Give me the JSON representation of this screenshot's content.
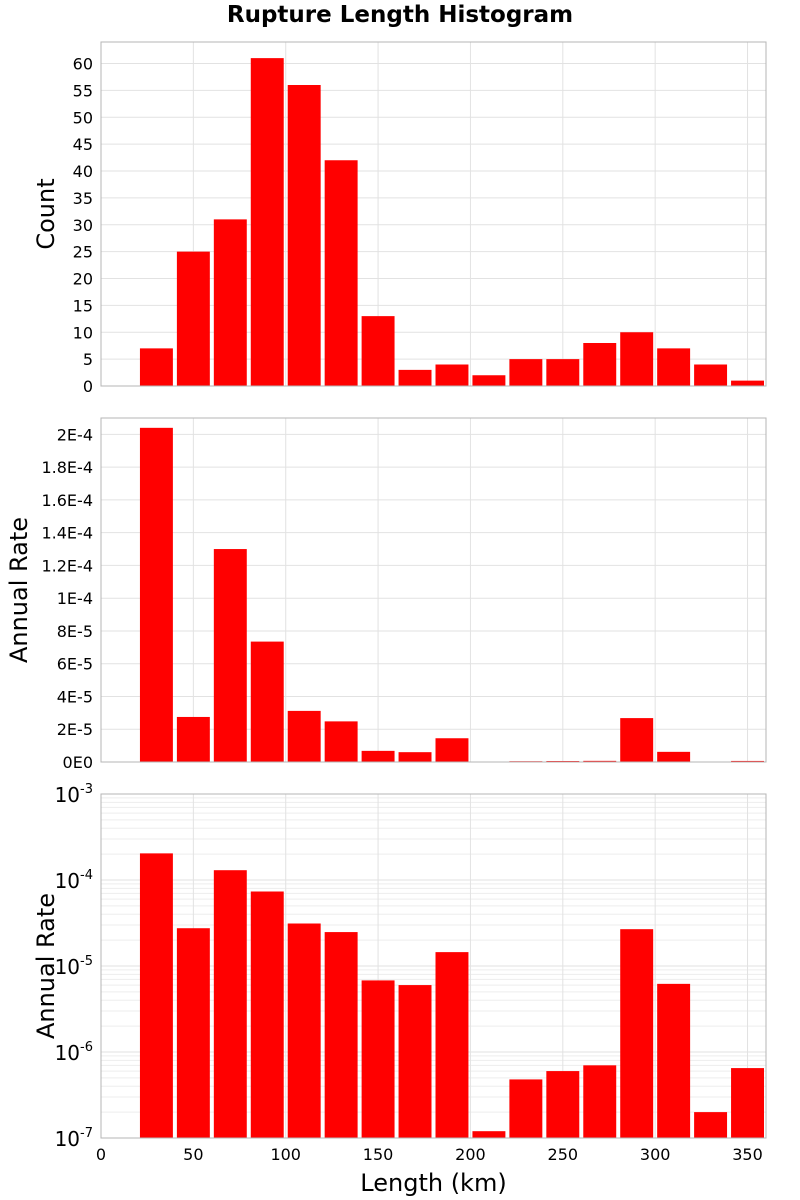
{
  "title": "Rupture Length Histogram",
  "chart_data": [
    {
      "type": "bar",
      "title": "Rupture Length Histogram",
      "xlabel": "",
      "ylabel": "Count",
      "xlim": [
        0,
        360
      ],
      "ylim": [
        0,
        64
      ],
      "yticks": [
        0,
        5,
        10,
        15,
        20,
        25,
        30,
        35,
        40,
        45,
        50,
        55,
        60
      ],
      "ytick_labels": [
        "0",
        "5",
        "10",
        "15",
        "20",
        "25",
        "30",
        "35",
        "40",
        "45",
        "50",
        "55",
        "60"
      ],
      "grid": true,
      "bar_color": "#ff0000",
      "bins": [
        {
          "x": 30,
          "value": 7
        },
        {
          "x": 50,
          "value": 25
        },
        {
          "x": 70,
          "value": 31
        },
        {
          "x": 90,
          "value": 61
        },
        {
          "x": 110,
          "value": 56
        },
        {
          "x": 130,
          "value": 42
        },
        {
          "x": 150,
          "value": 13
        },
        {
          "x": 170,
          "value": 3
        },
        {
          "x": 190,
          "value": 4
        },
        {
          "x": 210,
          "value": 2
        },
        {
          "x": 230,
          "value": 5
        },
        {
          "x": 250,
          "value": 5
        },
        {
          "x": 270,
          "value": 8
        },
        {
          "x": 290,
          "value": 10
        },
        {
          "x": 310,
          "value": 7
        },
        {
          "x": 330,
          "value": 4
        },
        {
          "x": 350,
          "value": 1
        }
      ]
    },
    {
      "type": "bar",
      "xlabel": "",
      "ylabel": "Annual Rate",
      "xlim": [
        0,
        360
      ],
      "ylim": [
        0,
        0.00021
      ],
      "yticks": [
        0,
        2e-05,
        4e-05,
        6e-05,
        8e-05,
        0.0001,
        0.00012,
        0.00014,
        0.00016,
        0.00018,
        0.0002
      ],
      "ytick_labels": [
        "0E0",
        "2E-5",
        "4E-5",
        "6E-5",
        "8E-5",
        "1E-4",
        "1.2E-4",
        "1.4E-4",
        "1.6E-4",
        "1.8E-4",
        "2E-4"
      ],
      "grid": true,
      "bar_color": "#ff0000",
      "bins": [
        {
          "x": 30,
          "value": 0.000204
        },
        {
          "x": 50,
          "value": 2.75e-05
        },
        {
          "x": 70,
          "value": 0.00013
        },
        {
          "x": 90,
          "value": 7.35e-05
        },
        {
          "x": 110,
          "value": 3.12e-05
        },
        {
          "x": 130,
          "value": 2.48e-05
        },
        {
          "x": 150,
          "value": 6.8e-06
        },
        {
          "x": 170,
          "value": 6e-06
        },
        {
          "x": 190,
          "value": 1.45e-05
        },
        {
          "x": 210,
          "value": 1.2e-07
        },
        {
          "x": 230,
          "value": 4.8e-07
        },
        {
          "x": 250,
          "value": 6e-07
        },
        {
          "x": 270,
          "value": 7e-07
        },
        {
          "x": 290,
          "value": 2.68e-05
        },
        {
          "x": 310,
          "value": 6.2e-06
        },
        {
          "x": 330,
          "value": 2e-07
        },
        {
          "x": 350,
          "value": 6.5e-07
        }
      ]
    },
    {
      "type": "bar",
      "xlabel": "Length (km)",
      "ylabel": "Annual Rate",
      "xlim": [
        0,
        360
      ],
      "ylim": [
        1e-07,
        0.001
      ],
      "yscale": "log",
      "yticks": [
        1e-07,
        1e-06,
        1e-05,
        0.0001,
        0.001
      ],
      "ytick_labels": [
        {
          "base": "10",
          "exp": "-7"
        },
        {
          "base": "10",
          "exp": "-6"
        },
        {
          "base": "10",
          "exp": "-5"
        },
        {
          "base": "10",
          "exp": "-4"
        },
        {
          "base": "10",
          "exp": "-3"
        }
      ],
      "xticks": [
        0,
        50,
        100,
        150,
        200,
        250,
        300,
        350
      ],
      "xtick_labels": [
        "0",
        "50",
        "100",
        "150",
        "200",
        "250",
        "300",
        "350"
      ],
      "grid": true,
      "bar_color": "#ff0000",
      "bins": [
        {
          "x": 30,
          "value": 0.000204
        },
        {
          "x": 50,
          "value": 2.75e-05
        },
        {
          "x": 70,
          "value": 0.00013
        },
        {
          "x": 90,
          "value": 7.35e-05
        },
        {
          "x": 110,
          "value": 3.12e-05
        },
        {
          "x": 130,
          "value": 2.48e-05
        },
        {
          "x": 150,
          "value": 6.8e-06
        },
        {
          "x": 170,
          "value": 6e-06
        },
        {
          "x": 190,
          "value": 1.45e-05
        },
        {
          "x": 210,
          "value": 1.2e-07
        },
        {
          "x": 230,
          "value": 4.8e-07
        },
        {
          "x": 250,
          "value": 6e-07
        },
        {
          "x": 270,
          "value": 7e-07
        },
        {
          "x": 290,
          "value": 2.68e-05
        },
        {
          "x": 310,
          "value": 6.2e-06
        },
        {
          "x": 330,
          "value": 2e-07
        },
        {
          "x": 350,
          "value": 6.5e-07
        }
      ]
    }
  ]
}
